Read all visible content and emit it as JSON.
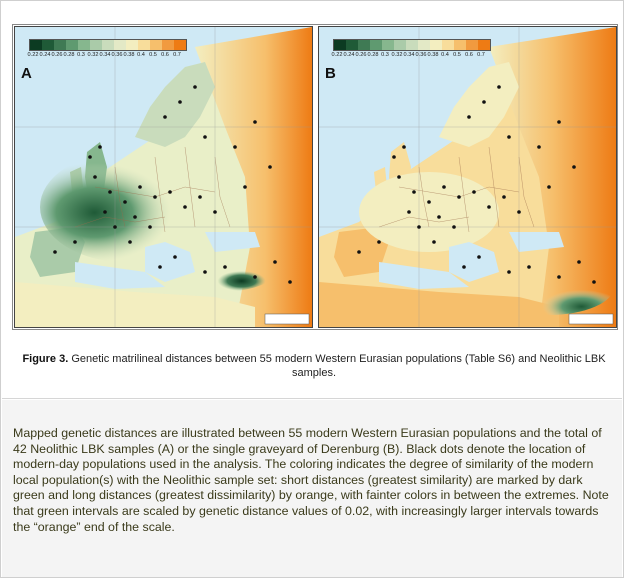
{
  "figure": {
    "panel_a_label": "A",
    "panel_b_label": "B",
    "scale_values": [
      "0.22",
      "0.24",
      "0.26",
      "0.28",
      "0.3",
      "0.32",
      "0.34",
      "0.36",
      "0.38",
      "0.4",
      "0.5",
      "0.6",
      "0.7"
    ],
    "scale_colors": [
      "#0c3b22",
      "#1f5a37",
      "#3f7a54",
      "#5f9a70",
      "#86b78e",
      "#aacba9",
      "#c9dcbc",
      "#e3e9c6",
      "#f3eec0",
      "#f8dd9b",
      "#f6bf6c",
      "#f19a3f",
      "#ee7b14"
    ]
  },
  "caption": {
    "label": "Figure 3.",
    "text": " Genetic matrilineal distances between 55 modern Western Eurasian populations (Table S6) and Neolithic LBK samples."
  },
  "description": "Mapped genetic distances are illustrated between 55 modern Western Eurasian populations and the total of 42 Neolithic LBK samples (A) or the single graveyard of Derenburg (B). Black dots denote the location of modern-day populations used in the analysis. The coloring indicates the degree of similarity of the modern local population(s) with the Neolithic sample set: short distances (greatest similarity) are marked by dark green and long distances (greatest dissimilarity) by orange, with fainter colors in between the extremes. Note that green intervals are scaled by genetic distance values of 0.02, with increasingly larger intervals towards the “orange” end of the scale."
}
